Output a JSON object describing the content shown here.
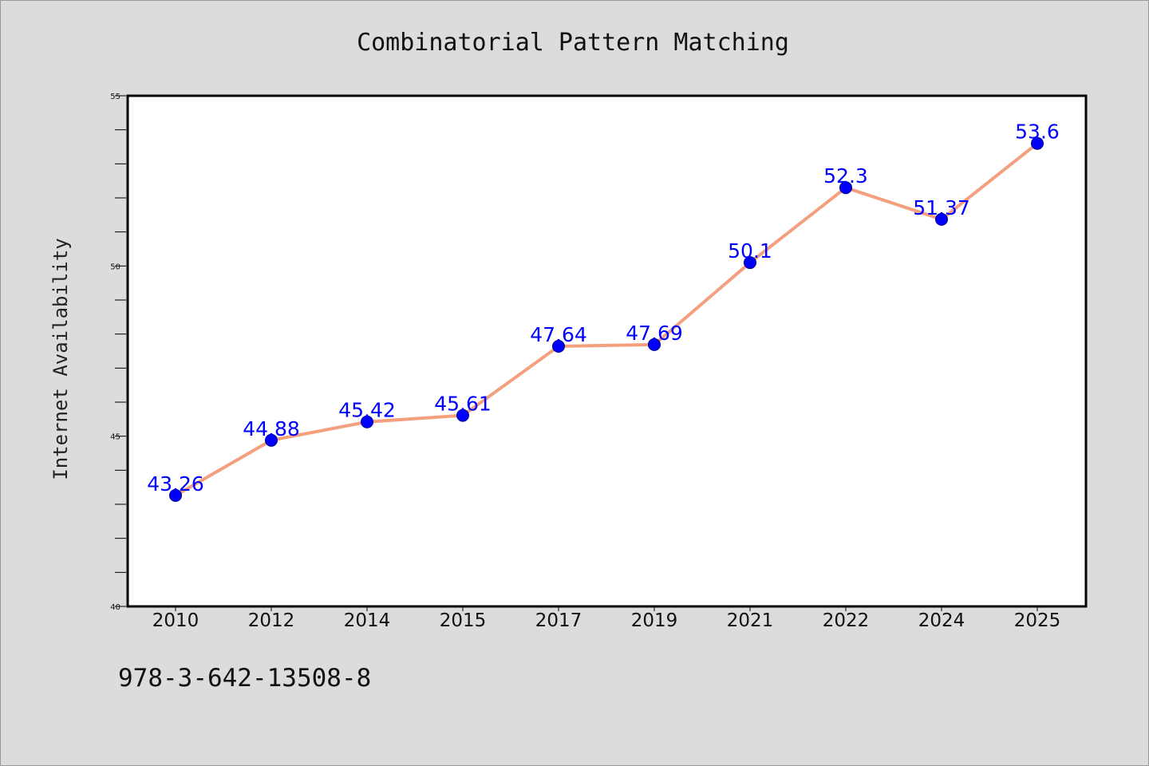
{
  "chart_data": {
    "type": "line",
    "title": "Combinatorial Pattern Matching",
    "xlabel": "",
    "ylabel": "Internet Availability",
    "categories": [
      "2010",
      "2012",
      "2014",
      "2015",
      "2017",
      "2019",
      "2021",
      "2022",
      "2024",
      "2025"
    ],
    "values": [
      43.26,
      44.88,
      45.42,
      45.61,
      47.64,
      47.69,
      50.1,
      52.3,
      51.37,
      53.6
    ],
    "data_labels": [
      "43.26",
      "44.88",
      "45.42",
      "45.61",
      "47.64",
      "47.69",
      "50.1",
      "52.3",
      "51.37",
      "53.6"
    ],
    "ylim": [
      40,
      55
    ],
    "yticks": [
      40,
      45,
      50,
      55
    ],
    "y_minor_step": 1,
    "grid": false,
    "legend": "none",
    "line_color": "#f4a07e",
    "marker_color": "#0000ff",
    "label_color": "#0000ff"
  },
  "footnote": "978-3-642-13508-8"
}
